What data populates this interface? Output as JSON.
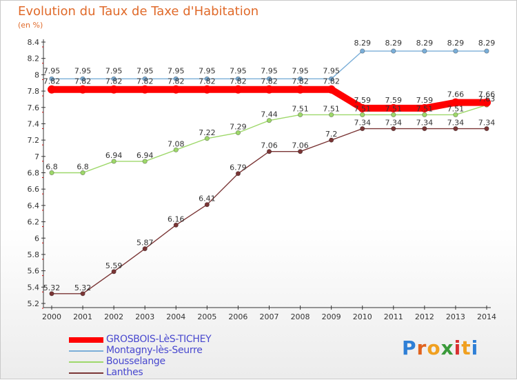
{
  "header": {
    "title": "Evolution du Taux de Taxe d'Habitation",
    "unit": "(en %)"
  },
  "logo": {
    "text": "Proxiti",
    "letters": [
      "P",
      "r",
      "o",
      "x",
      "i",
      "t",
      "i"
    ],
    "colors": [
      "#2e7fd6",
      "#e0621e",
      "#f0a020",
      "#3a9a3a",
      "#d83030",
      "#f0a020",
      "#2e7fd6"
    ]
  },
  "chart_data": {
    "type": "line",
    "title": "Evolution du Taux de Taxe d'Habitation",
    "ylabel": "(en %)",
    "xlabel": "",
    "x": [
      "2000",
      "2001",
      "2002",
      "2003",
      "2004",
      "2005",
      "2006",
      "2007",
      "2008",
      "2009",
      "2010",
      "2011",
      "2012",
      "2013",
      "2014"
    ],
    "ylim": [
      5.2,
      8.4
    ],
    "yticks": [
      "5.2",
      "5.4",
      "5.6",
      "5.8",
      "6",
      "6.2",
      "6.4",
      "6.6",
      "6.8",
      "7",
      "7.2",
      "7.4",
      "7.6",
      "7.8",
      "8",
      "8.2",
      "8.4"
    ],
    "grid": false,
    "legend_position": "bottom-left",
    "series": [
      {
        "name": "GROSBOIS-LèS-TICHEY",
        "color": "#ff0000",
        "values": [
          7.82,
          7.82,
          7.82,
          7.82,
          7.82,
          7.82,
          7.82,
          7.82,
          7.82,
          7.82,
          7.59,
          7.59,
          7.59,
          7.66,
          7.66
        ],
        "labels": [
          "7.82",
          "7.82",
          "7.82",
          "7.82",
          "7.82",
          "7.82",
          "7.82",
          "7.82",
          "7.82",
          "7.82",
          "7.59",
          "7.59",
          "7.59",
          "7.66",
          "7.66"
        ]
      },
      {
        "name": "Montagny-lès-Seurre",
        "color": "#7aaed8",
        "values": [
          7.95,
          7.95,
          7.95,
          7.95,
          7.95,
          7.95,
          7.95,
          7.95,
          7.95,
          7.95,
          8.29,
          8.29,
          8.29,
          8.29,
          8.29
        ],
        "labels": [
          "7.95",
          "7.95",
          "7.95",
          "7.95",
          "7.95",
          "7.95",
          "7.95",
          "7.95",
          "7.95",
          "7.95",
          "8.29",
          "8.29",
          "8.29",
          "8.29",
          "8.29"
        ]
      },
      {
        "name": "Bousselange",
        "color": "#9ed86a",
        "values": [
          6.8,
          6.8,
          6.94,
          6.94,
          7.08,
          7.22,
          7.29,
          7.44,
          7.51,
          7.51,
          7.51,
          7.51,
          7.51,
          7.51,
          7.63
        ],
        "labels": [
          "6.8",
          "6.8",
          "6.94",
          "6.94",
          "7.08",
          "7.22",
          "7.29",
          "7.44",
          "7.51",
          "7.51",
          "7.51",
          "7.51",
          "7.51",
          "7.51",
          "7.63"
        ]
      },
      {
        "name": "Lanthes",
        "color": "#7a3535",
        "values": [
          5.32,
          5.32,
          5.59,
          5.87,
          6.16,
          6.41,
          6.79,
          7.06,
          7.06,
          7.2,
          7.34,
          7.34,
          7.34,
          7.34,
          7.34
        ],
        "labels": [
          "5.32",
          "5.32",
          "5.59",
          "5.87",
          "6.16",
          "6.41",
          "6.79",
          "7.06",
          "7.06",
          "7.2",
          "7.34",
          "7.34",
          "7.34",
          "7.34",
          "7.34"
        ]
      }
    ]
  }
}
